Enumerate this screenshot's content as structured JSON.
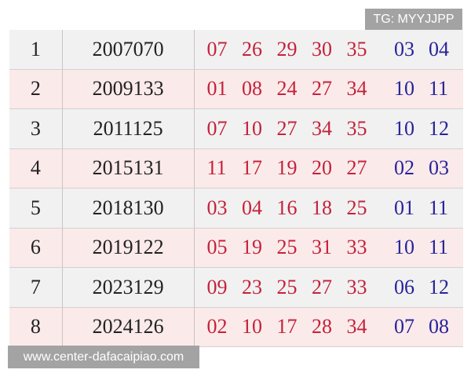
{
  "watermark_top": "TG: MYYJJPP",
  "watermark_bottom": "www.center-dafacaipiao.com",
  "colors": {
    "red_ball": "#c4223b",
    "blue_ball": "#27239a",
    "odd_row": "#f1f1f1",
    "even_row": "#fbeaea"
  },
  "rows": [
    {
      "index": "1",
      "issue": "2007070",
      "red": [
        "07",
        "26",
        "29",
        "30",
        "35"
      ],
      "blue": [
        "03",
        "04"
      ]
    },
    {
      "index": "2",
      "issue": "2009133",
      "red": [
        "01",
        "08",
        "24",
        "27",
        "34"
      ],
      "blue": [
        "10",
        "11"
      ]
    },
    {
      "index": "3",
      "issue": "2011125",
      "red": [
        "07",
        "10",
        "27",
        "34",
        "35"
      ],
      "blue": [
        "10",
        "12"
      ]
    },
    {
      "index": "4",
      "issue": "2015131",
      "red": [
        "11",
        "17",
        "19",
        "20",
        "27"
      ],
      "blue": [
        "02",
        "03"
      ]
    },
    {
      "index": "5",
      "issue": "2018130",
      "red": [
        "03",
        "04",
        "16",
        "18",
        "25"
      ],
      "blue": [
        "01",
        "11"
      ]
    },
    {
      "index": "6",
      "issue": "2019122",
      "red": [
        "05",
        "19",
        "25",
        "31",
        "33"
      ],
      "blue": [
        "10",
        "11"
      ]
    },
    {
      "index": "7",
      "issue": "2023129",
      "red": [
        "09",
        "23",
        "25",
        "27",
        "33"
      ],
      "blue": [
        "06",
        "12"
      ]
    },
    {
      "index": "8",
      "issue": "2024126",
      "red": [
        "02",
        "10",
        "17",
        "28",
        "34"
      ],
      "blue": [
        "07",
        "08"
      ]
    }
  ]
}
